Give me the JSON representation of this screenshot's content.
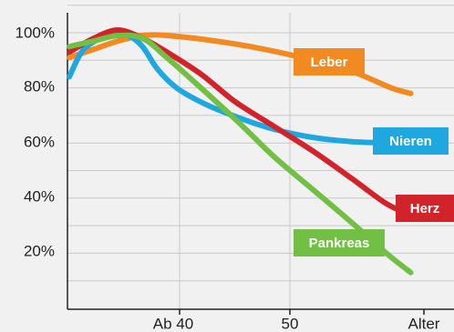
{
  "chart_data": {
    "type": "line",
    "x_tick_labels": [
      "Ab 40",
      "50",
      "Alter"
    ],
    "y_tick_labels": [
      "100%",
      "80%",
      "60%",
      "40%",
      "20%"
    ],
    "y_ticks": [
      100,
      80,
      60,
      40,
      20
    ],
    "ylim": [
      0,
      110
    ],
    "grid": true,
    "series": [
      {
        "name": "Leber",
        "color": "#f28a21",
        "points": [
          [
            0,
            91
          ],
          [
            5,
            94
          ],
          [
            10,
            97
          ],
          [
            15,
            99
          ],
          [
            20,
            99
          ],
          [
            30,
            97
          ],
          [
            40,
            94
          ],
          [
            50,
            90
          ],
          [
            58,
            86
          ],
          [
            66,
            80
          ],
          [
            70,
            78
          ]
        ]
      },
      {
        "name": "Nieren",
        "color": "#1fa8e0",
        "points": [
          [
            0,
            84
          ],
          [
            3,
            94
          ],
          [
            8,
            99
          ],
          [
            12,
            99
          ],
          [
            15,
            95
          ],
          [
            18,
            87
          ],
          [
            22,
            80
          ],
          [
            28,
            74
          ],
          [
            35,
            69
          ],
          [
            42,
            65
          ],
          [
            50,
            62
          ],
          [
            58,
            60.5
          ],
          [
            66,
            60
          ],
          [
            70,
            60
          ]
        ]
      },
      {
        "name": "Herz",
        "color": "#d2232a",
        "points": [
          [
            0,
            93
          ],
          [
            5,
            98
          ],
          [
            10,
            101
          ],
          [
            15,
            98
          ],
          [
            20,
            93
          ],
          [
            27,
            85
          ],
          [
            34,
            75
          ],
          [
            42,
            66
          ],
          [
            50,
            57
          ],
          [
            58,
            47
          ],
          [
            65,
            38
          ],
          [
            70,
            34
          ]
        ]
      },
      {
        "name": "Pankreas",
        "color": "#71bf44",
        "points": [
          [
            0,
            95
          ],
          [
            5,
            97
          ],
          [
            10,
            99
          ],
          [
            15,
            98
          ],
          [
            20,
            91
          ],
          [
            27,
            80
          ],
          [
            35,
            67
          ],
          [
            42,
            55
          ],
          [
            50,
            43
          ],
          [
            58,
            31
          ],
          [
            65,
            20
          ],
          [
            70,
            13
          ]
        ]
      }
    ]
  }
}
